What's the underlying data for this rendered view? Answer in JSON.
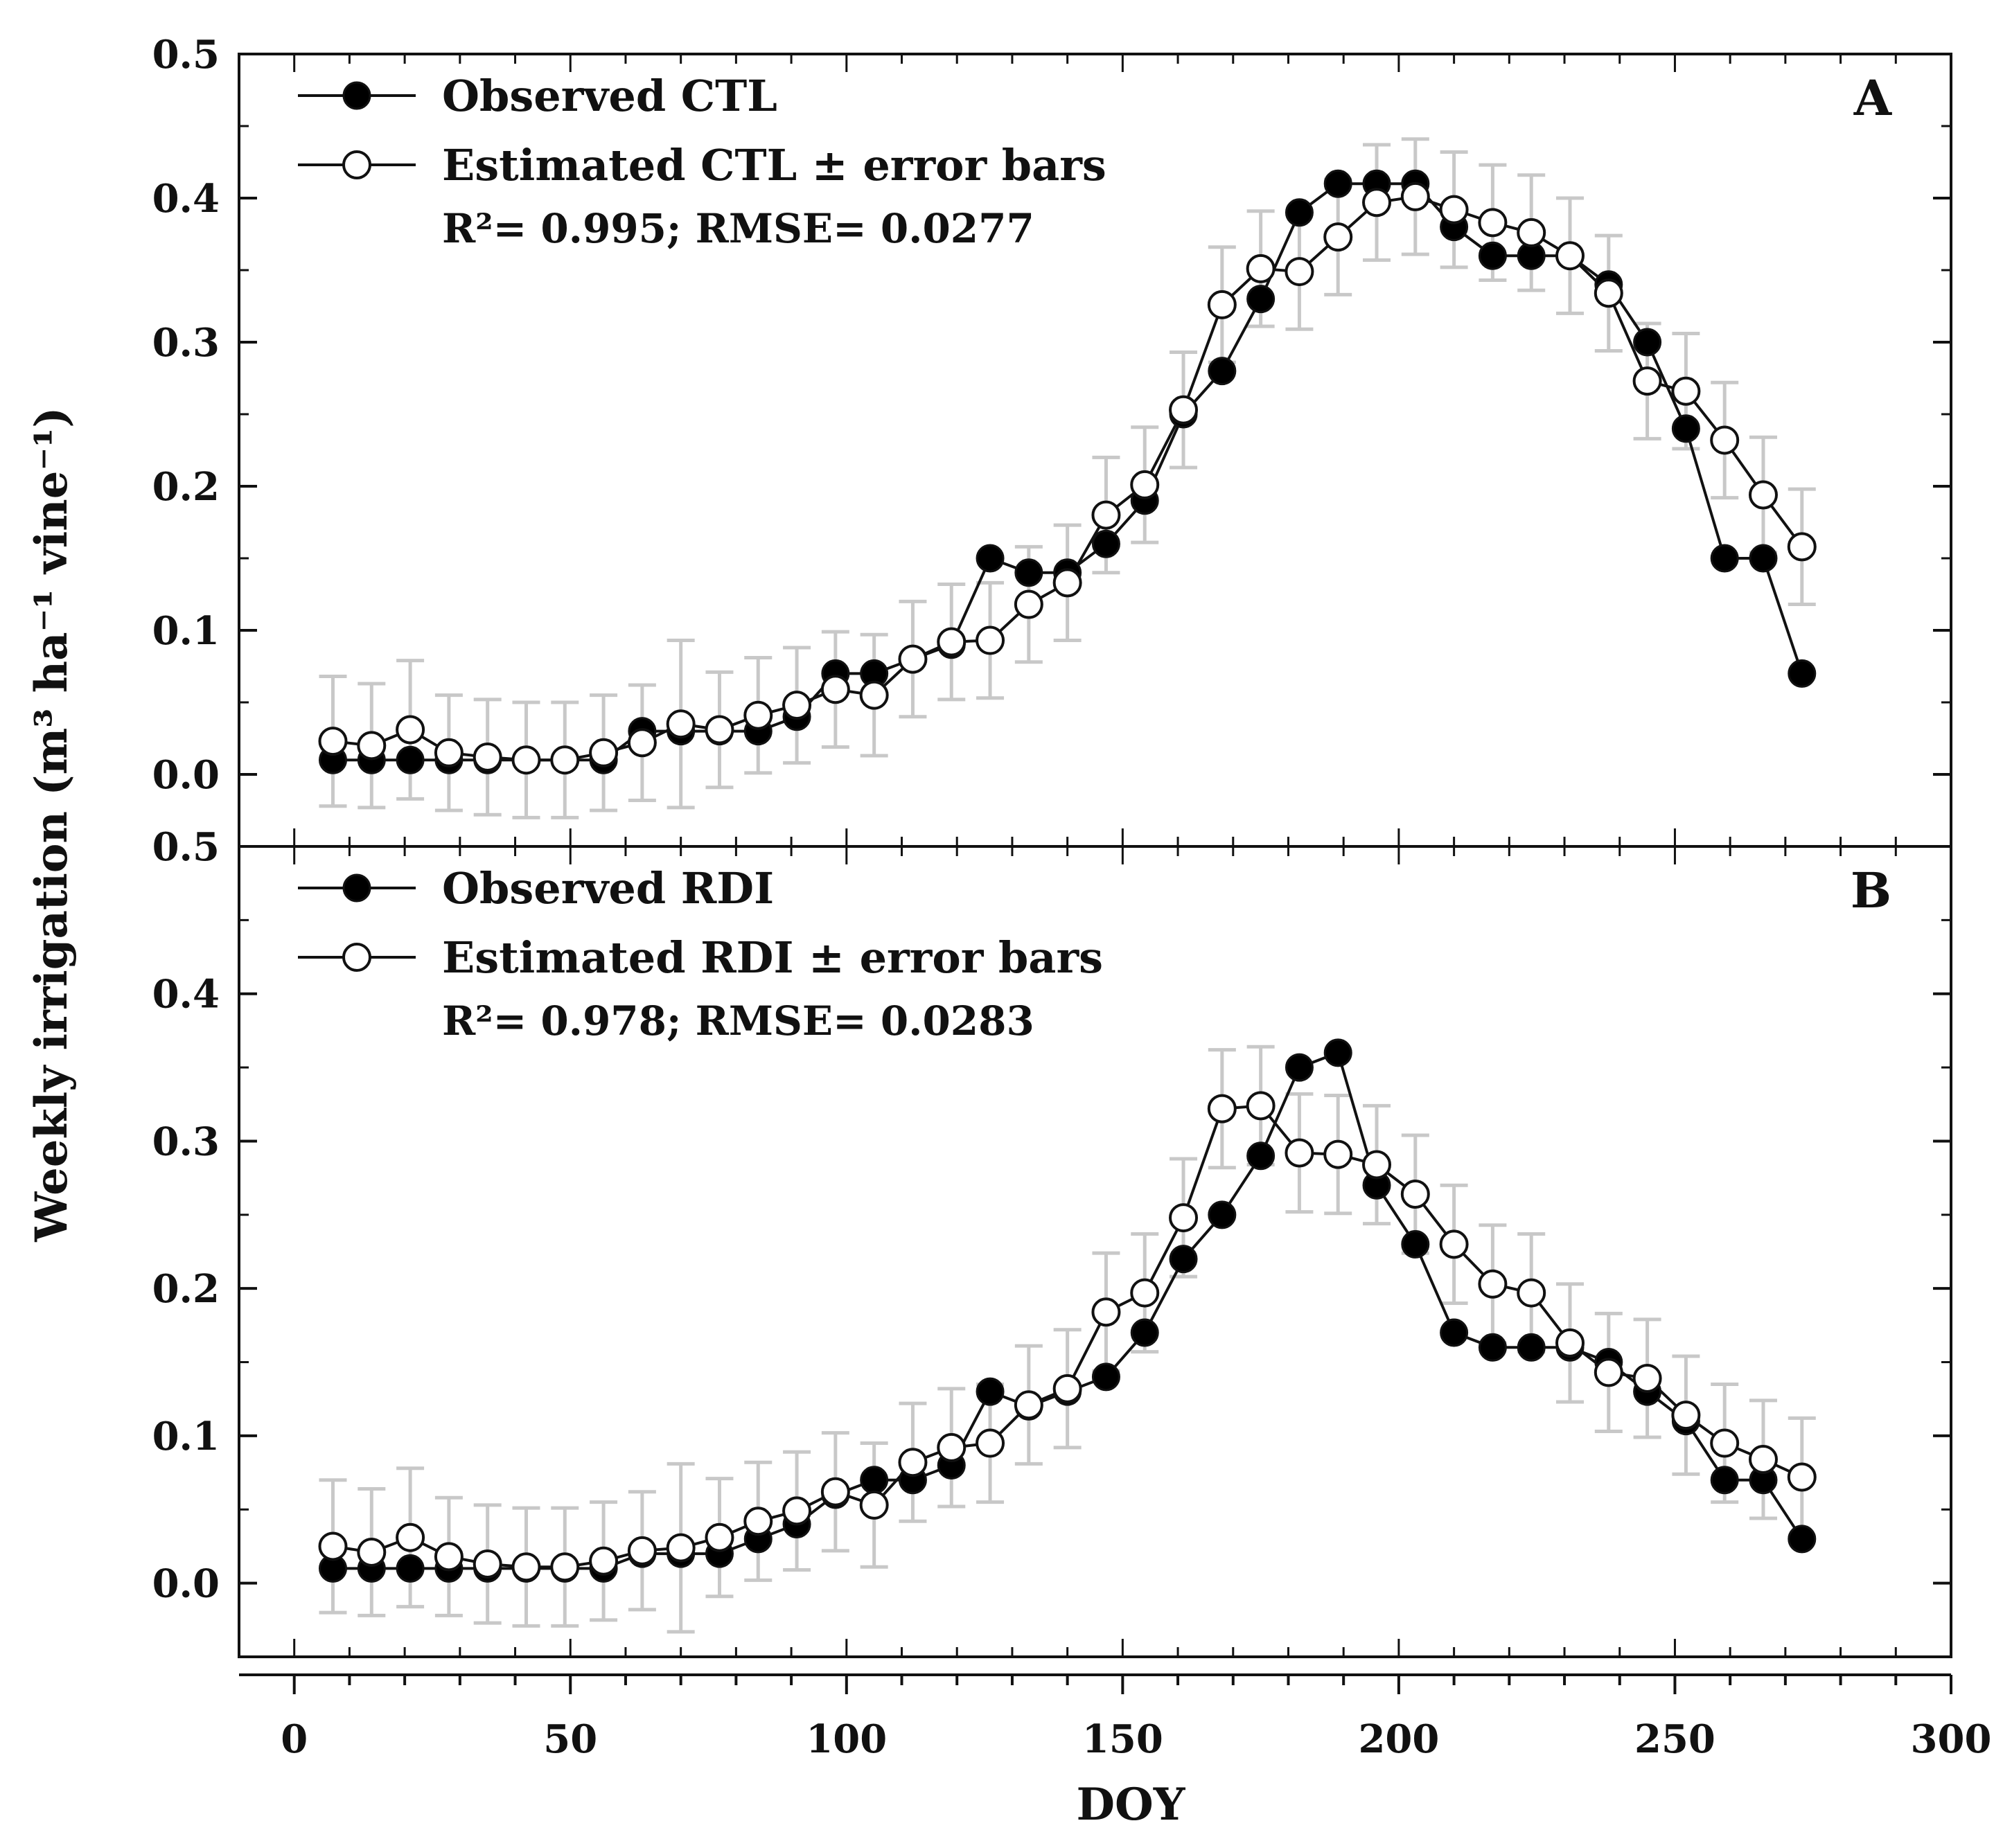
{
  "figure": {
    "ylabel": "Weekly irrigation (m³ ha⁻¹ vine⁻¹)",
    "xlabel": "DOY",
    "x_ticks": [
      "0",
      "50",
      "100",
      "150",
      "200",
      "250",
      "300"
    ],
    "y_ticks": [
      "0.0",
      "0.1",
      "0.2",
      "0.3",
      "0.4",
      "0.5"
    ]
  },
  "colors": {
    "line": "#111111",
    "observed_fill": "#000000",
    "estimated_fill": "#ffffff",
    "error_bar": "#c8c8c8"
  },
  "chart_data": [
    {
      "type": "line",
      "panel": "A",
      "xlabel": "DOY",
      "ylabel": "Weekly irrigation (m³ ha⁻¹ vine⁻¹)",
      "xlim": [
        -10,
        300
      ],
      "ylim": [
        -0.05,
        0.5
      ],
      "legend_position": "top-left",
      "legend": [
        "Observed CTL",
        "Estimated CTL ± error bars"
      ],
      "annotation": "R²= 0.995; RMSE= 0.0277",
      "x": [
        7,
        14,
        21,
        28,
        35,
        42,
        49,
        56,
        63,
        70,
        77,
        84,
        91,
        98,
        105,
        112,
        119,
        126,
        133,
        140,
        147,
        154,
        161,
        168,
        175,
        182,
        189,
        196,
        203,
        210,
        217,
        224,
        231,
        238,
        245,
        252,
        259,
        266,
        273
      ],
      "series": [
        {
          "name": "Observed CTL",
          "marker": "filled-circle",
          "values": [
            0.01,
            0.01,
            0.01,
            0.01,
            0.01,
            0.01,
            0.01,
            0.01,
            0.03,
            0.03,
            0.03,
            0.03,
            0.04,
            0.07,
            0.07,
            0.08,
            0.09,
            0.15,
            0.14,
            0.14,
            0.16,
            0.19,
            0.25,
            0.28,
            0.33,
            0.39,
            0.41,
            0.41,
            0.41,
            0.38,
            0.36,
            0.36,
            0.36,
            0.34,
            0.3,
            0.24,
            0.15,
            0.15,
            0.07
          ]
        },
        {
          "name": "Estimated CTL ± error bars",
          "marker": "open-circle",
          "values": [
            0.023,
            0.02,
            0.031,
            0.015,
            0.012,
            0.01,
            0.01,
            0.015,
            0.022,
            0.035,
            0.031,
            0.041,
            0.048,
            0.059,
            0.055,
            0.08,
            0.092,
            0.093,
            0.118,
            0.133,
            0.18,
            0.201,
            0.253,
            0.326,
            0.351,
            0.349,
            0.373,
            0.397,
            0.401,
            0.392,
            0.383,
            0.376,
            0.36,
            0.334,
            0.273,
            0.266,
            0.232,
            0.194,
            0.158
          ],
          "error": [
            0.045,
            0.043,
            0.048,
            0.04,
            0.04,
            0.04,
            0.04,
            0.04,
            0.04,
            0.058,
            0.04,
            0.04,
            0.04,
            0.04,
            0.042,
            0.04,
            0.04,
            0.04,
            0.04,
            0.04,
            0.04,
            0.04,
            0.04,
            0.04,
            0.04,
            0.04,
            0.04,
            0.04,
            0.04,
            0.04,
            0.04,
            0.04,
            0.04,
            0.04,
            0.04,
            0.04,
            0.04,
            0.04,
            0.04
          ]
        }
      ]
    },
    {
      "type": "line",
      "panel": "B",
      "xlabel": "DOY",
      "ylabel": "Weekly irrigation (m³ ha⁻¹ vine⁻¹)",
      "xlim": [
        -10,
        300
      ],
      "ylim": [
        -0.05,
        0.5
      ],
      "legend_position": "top-left",
      "legend": [
        "Observed RDI",
        "Estimated RDI ± error bars"
      ],
      "annotation": "R²= 0.978; RMSE= 0.0283",
      "x": [
        7,
        14,
        21,
        28,
        35,
        42,
        49,
        56,
        63,
        70,
        77,
        84,
        91,
        98,
        105,
        112,
        119,
        126,
        133,
        140,
        147,
        154,
        161,
        168,
        175,
        182,
        189,
        196,
        203,
        210,
        217,
        224,
        231,
        238,
        245,
        252,
        259,
        266,
        273
      ],
      "series": [
        {
          "name": "Observed RDI",
          "marker": "filled-circle",
          "values": [
            0.01,
            0.01,
            0.01,
            0.01,
            0.01,
            0.01,
            0.01,
            0.01,
            0.02,
            0.02,
            0.02,
            0.03,
            0.04,
            0.06,
            0.07,
            0.07,
            0.08,
            0.13,
            0.12,
            0.13,
            0.14,
            0.17,
            0.22,
            0.25,
            0.29,
            0.35,
            0.36,
            0.27,
            0.23,
            0.17,
            0.16,
            0.16,
            0.16,
            0.15,
            0.13,
            0.11,
            0.07,
            0.07,
            0.03
          ]
        },
        {
          "name": "Estimated RDI ± error bars",
          "marker": "open-circle",
          "values": [
            0.025,
            0.021,
            0.031,
            0.018,
            0.013,
            0.011,
            0.011,
            0.015,
            0.022,
            0.024,
            0.031,
            0.042,
            0.049,
            0.062,
            0.053,
            0.082,
            0.092,
            0.095,
            0.121,
            0.132,
            0.184,
            0.197,
            0.248,
            0.322,
            0.324,
            0.292,
            0.291,
            0.284,
            0.264,
            0.23,
            0.203,
            0.197,
            0.163,
            0.143,
            0.139,
            0.114,
            0.095,
            0.084,
            0.072
          ],
          "error": [
            0.045,
            0.043,
            0.047,
            0.04,
            0.04,
            0.04,
            0.04,
            0.04,
            0.04,
            0.057,
            0.04,
            0.04,
            0.04,
            0.04,
            0.042,
            0.04,
            0.04,
            0.04,
            0.04,
            0.04,
            0.04,
            0.04,
            0.04,
            0.04,
            0.04,
            0.04,
            0.04,
            0.04,
            0.04,
            0.04,
            0.04,
            0.04,
            0.04,
            0.04,
            0.04,
            0.04,
            0.04,
            0.04,
            0.04
          ]
        }
      ]
    }
  ]
}
